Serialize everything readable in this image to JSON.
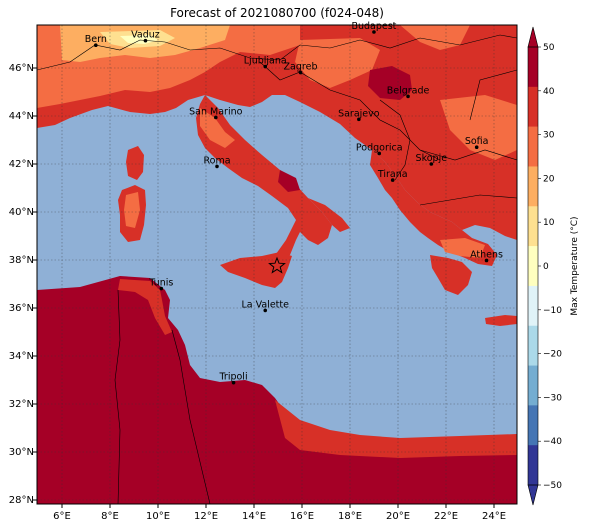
{
  "title": "Forecast of 2021080700 (f024-048)",
  "longitude_ticks": [
    "6°E",
    "8°E",
    "10°E",
    "12°E",
    "14°E",
    "16°E",
    "18°E",
    "20°E",
    "22°E",
    "24°E"
  ],
  "latitude_ticks": [
    "28°N",
    "30°N",
    "32°N",
    "34°N",
    "36°N",
    "38°N",
    "40°N",
    "42°N",
    "44°N",
    "46°N"
  ],
  "cities": [
    {
      "name": "Bern",
      "lon": 7.45,
      "lat": 46.95
    },
    {
      "name": "Vaduz",
      "lon": 9.52,
      "lat": 47.14
    },
    {
      "name": "Budapest",
      "lon": 19.04,
      "lat": 47.5
    },
    {
      "name": "Ljubljana",
      "lon": 14.51,
      "lat": 46.06
    },
    {
      "name": "Zagreb",
      "lon": 15.98,
      "lat": 45.81
    },
    {
      "name": "Belgrade",
      "lon": 20.46,
      "lat": 44.82
    },
    {
      "name": "San Marino",
      "lon": 12.45,
      "lat": 43.94
    },
    {
      "name": "Sarajevo",
      "lon": 18.41,
      "lat": 43.86
    },
    {
      "name": "Sofia",
      "lon": 23.32,
      "lat": 42.7
    },
    {
      "name": "Podgorica",
      "lon": 19.26,
      "lat": 42.44
    },
    {
      "name": "Skopje",
      "lon": 21.43,
      "lat": 42.0
    },
    {
      "name": "Roma",
      "lon": 12.5,
      "lat": 41.9
    },
    {
      "name": "Tirana",
      "lon": 19.82,
      "lat": 41.33
    },
    {
      "name": "Athens",
      "lon": 23.73,
      "lat": 37.98
    },
    {
      "name": "Tunis",
      "lon": 10.18,
      "lat": 36.81
    },
    {
      "name": "La Valette",
      "lon": 14.51,
      "lat": 35.9
    },
    {
      "name": "Tripoli",
      "lon": 13.19,
      "lat": 32.89
    }
  ],
  "marker": {
    "symbol": "star",
    "lon": 15.0,
    "lat": 37.75
  },
  "colorbar": {
    "label": "Max Temperature (°C)",
    "ticks": [
      "−50",
      "−40",
      "−30",
      "−20",
      "−10",
      "0",
      "10",
      "20",
      "30",
      "40",
      "50"
    ],
    "colors": [
      "#313695",
      "#4575b4",
      "#74add1",
      "#abd9e9",
      "#e0f3f8",
      "#ffffbf",
      "#fee090",
      "#fdae61",
      "#f46d43",
      "#d73027",
      "#a50026"
    ]
  },
  "colors": {
    "sea": "#8fb0d6",
    "land_very_hot": "#a50026",
    "land_hot": "#d73027",
    "land_warm": "#f46d43",
    "land_mild": "#fdae61",
    "land_cool": "#fee090",
    "land_snow": "#ffffbf"
  }
}
